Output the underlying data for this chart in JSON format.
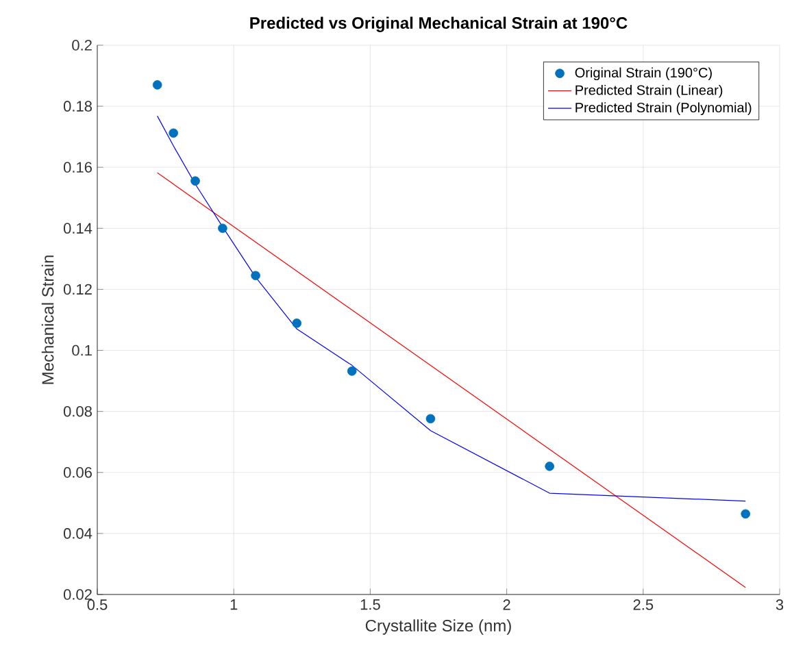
{
  "chart_data": {
    "type": "scatter",
    "title": "Predicted vs Original Mechanical Strain at 190°C",
    "xlabel": "Crystallite Size (nm)",
    "ylabel": "Mechanical Strain",
    "xlim": [
      0.5,
      3
    ],
    "ylim": [
      0.02,
      0.2
    ],
    "xticks": [
      0.5,
      1,
      1.5,
      2,
      2.5,
      3
    ],
    "yticks": [
      0.02,
      0.04,
      0.06,
      0.08,
      0.1,
      0.12,
      0.14,
      0.16,
      0.18,
      0.2
    ],
    "grid": true,
    "legend": "top right",
    "series": [
      {
        "name": "Original Strain (190°C)",
        "marker": "circle",
        "color": "#0072bd",
        "x": [
          0.72,
          0.779,
          0.859,
          0.959,
          1.08,
          1.231,
          1.433,
          1.721,
          2.157,
          2.875
        ],
        "values": [
          0.187,
          0.1712,
          0.1555,
          0.14,
          0.1245,
          0.1089,
          0.0932,
          0.0776,
          0.062,
          0.0464
        ]
      },
      {
        "name": "Predicted Strain (Linear)",
        "type": "line",
        "marker": "none",
        "color": "#ff0000",
        "x": [
          0.72,
          2.875
        ],
        "values": [
          0.1582,
          0.0223
        ]
      },
      {
        "name": "Predicted Strain (Polynomial)",
        "type": "line",
        "marker": "none",
        "color": "#0000ff",
        "x": [
          0.72,
          0.779,
          0.859,
          0.959,
          1.08,
          1.231,
          1.433,
          1.721,
          2.157,
          2.875
        ],
        "values": [
          0.1768,
          0.167,
          0.1545,
          0.1405,
          0.124,
          0.107,
          0.0951,
          0.0737,
          0.0532,
          0.0506
        ]
      }
    ]
  }
}
